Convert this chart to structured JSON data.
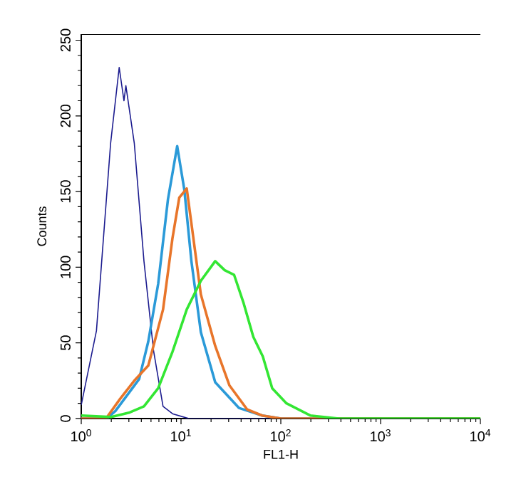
{
  "chart_data": {
    "type": "line",
    "xlabel": "FL1-H",
    "ylabel": "Counts",
    "log": "x",
    "xlim": [
      1,
      10000
    ],
    "ylim": [
      0,
      254
    ],
    "xticks": [
      {
        "value": 1,
        "label": "10$^{0}$"
      },
      {
        "value": 10,
        "label": "10$^{1}$"
      },
      {
        "value": 100,
        "label": "10$^{2}$"
      },
      {
        "value": 1000,
        "label": "10$^{3}$"
      },
      {
        "value": 10000,
        "label": "10$^{4}$"
      }
    ],
    "yticks": [
      0,
      50,
      100,
      150,
      200,
      250
    ],
    "grid": false,
    "marker": "none",
    "line_style": "solid",
    "series": [
      {
        "color": "#1c1c8f",
        "x": [
          1,
          1.42,
          1.97,
          2.4,
          2.68,
          2.8,
          3.4,
          4.25,
          5.3,
          6.6,
          8.3,
          12,
          10000
        ],
        "values": [
          9,
          58,
          182,
          232,
          210,
          220,
          182,
          104,
          45,
          8,
          3,
          0,
          0
        ]
      },
      {
        "color": "#2b9ad8",
        "x": [
          1,
          1.8,
          2.2,
          3.8,
          4.7,
          5.9,
          7.4,
          9.15,
          10.8,
          12.7,
          15.8,
          22,
          38,
          65,
          100,
          10000
        ],
        "values": [
          0,
          0,
          5,
          26,
          51,
          89,
          145,
          180,
          151,
          104,
          57,
          24,
          7,
          2,
          0,
          0
        ]
      },
      {
        "color": "#e8752a",
        "x": [
          1,
          1.77,
          2.45,
          3.4,
          4.7,
          6.6,
          8.2,
          9.6,
          11.4,
          12.7,
          15.8,
          22,
          30.5,
          46,
          65,
          100,
          10000
        ],
        "values": [
          0,
          0,
          13,
          25,
          35,
          72,
          119,
          146,
          152,
          129,
          82,
          48,
          22,
          6,
          2,
          0,
          0
        ]
      },
      {
        "color": "#33e633",
        "x": [
          1,
          2,
          3.06,
          4.25,
          5.9,
          8.2,
          11.4,
          15.8,
          22,
          27.4,
          34,
          42.5,
          53,
          66,
          82,
          114,
          197,
          380,
          10000
        ],
        "values": [
          2,
          1,
          4,
          8,
          20,
          44,
          72,
          91,
          104,
          98,
          95,
          76,
          54,
          41,
          20,
          10,
          2,
          0,
          0
        ]
      }
    ]
  }
}
